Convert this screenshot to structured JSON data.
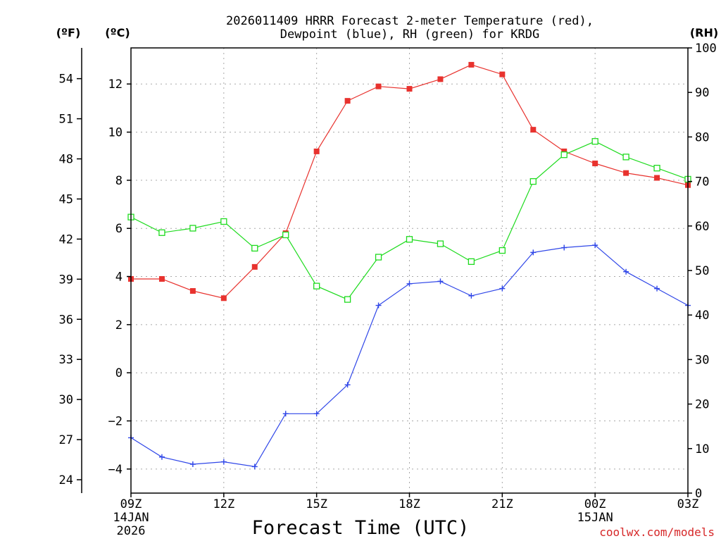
{
  "chart_data": {
    "type": "line",
    "title_lines": [
      "2026011409 HRRR Forecast 2-meter Temperature (red),",
      "Dewpoint (blue), RH (green) for KRDG"
    ],
    "xlabel": "Forecast Time (UTC)",
    "credit": "coolwx.com/models",
    "units": {
      "fahrenheit": "(ºF)",
      "celsius": "(ºC)",
      "rh": "(RH)"
    },
    "x_hours": [
      0,
      1,
      2,
      3,
      4,
      5,
      6,
      7,
      8,
      9,
      10,
      11,
      12,
      13,
      14,
      15,
      16,
      17,
      18
    ],
    "x_ticks": [
      {
        "hour": 0,
        "label": "09Z",
        "date": "14JAN",
        "year": "2026"
      },
      {
        "hour": 3,
        "label": "12Z"
      },
      {
        "hour": 6,
        "label": "15Z"
      },
      {
        "hour": 9,
        "label": "18Z"
      },
      {
        "hour": 12,
        "label": "21Z"
      },
      {
        "hour": 15,
        "label": "00Z",
        "date": "15JAN"
      },
      {
        "hour": 18,
        "label": "03Z"
      }
    ],
    "celsius_axis": {
      "min": -5,
      "max": 13.5,
      "ticks": [
        -4,
        -2,
        0,
        2,
        4,
        6,
        8,
        10,
        12
      ],
      "tick_labels": [
        "−4",
        "−2",
        "0",
        "2",
        "4",
        "6",
        "8",
        "10",
        "12"
      ]
    },
    "fahrenheit_ticks": [
      24,
      27,
      30,
      33,
      36,
      39,
      42,
      45,
      48,
      51,
      54
    ],
    "rh_axis": {
      "min": 0,
      "max": 100,
      "ticks": [
        0,
        10,
        20,
        30,
        40,
        50,
        60,
        70,
        80,
        90,
        100
      ]
    },
    "series": [
      {
        "name": "Temperature (°C)",
        "color": "#e8322e",
        "marker": "filled-square",
        "axis": "celsius",
        "values": [
          3.9,
          3.9,
          3.4,
          3.1,
          4.4,
          5.8,
          9.2,
          11.3,
          11.9,
          11.8,
          12.2,
          12.8,
          12.4,
          10.1,
          9.2,
          8.7,
          8.3,
          8.1,
          7.8
        ]
      },
      {
        "name": "Dewpoint (°C)",
        "color": "#2f46e8",
        "marker": "plus",
        "axis": "celsius",
        "values": [
          -2.7,
          -3.5,
          -3.8,
          -3.7,
          -3.9,
          -1.7,
          -1.7,
          -0.5,
          2.8,
          3.7,
          3.8,
          3.2,
          3.5,
          5.0,
          5.2,
          5.3,
          4.2,
          3.5,
          2.8
        ]
      },
      {
        "name": "RH (%)",
        "color": "#1fdb1f",
        "marker": "open-square",
        "axis": "rh",
        "values": [
          62,
          58.5,
          59.5,
          61,
          55,
          58,
          46.5,
          43.5,
          53,
          57,
          56,
          52,
          54.5,
          70,
          76,
          79,
          75.5,
          73,
          70.5
        ]
      }
    ]
  }
}
